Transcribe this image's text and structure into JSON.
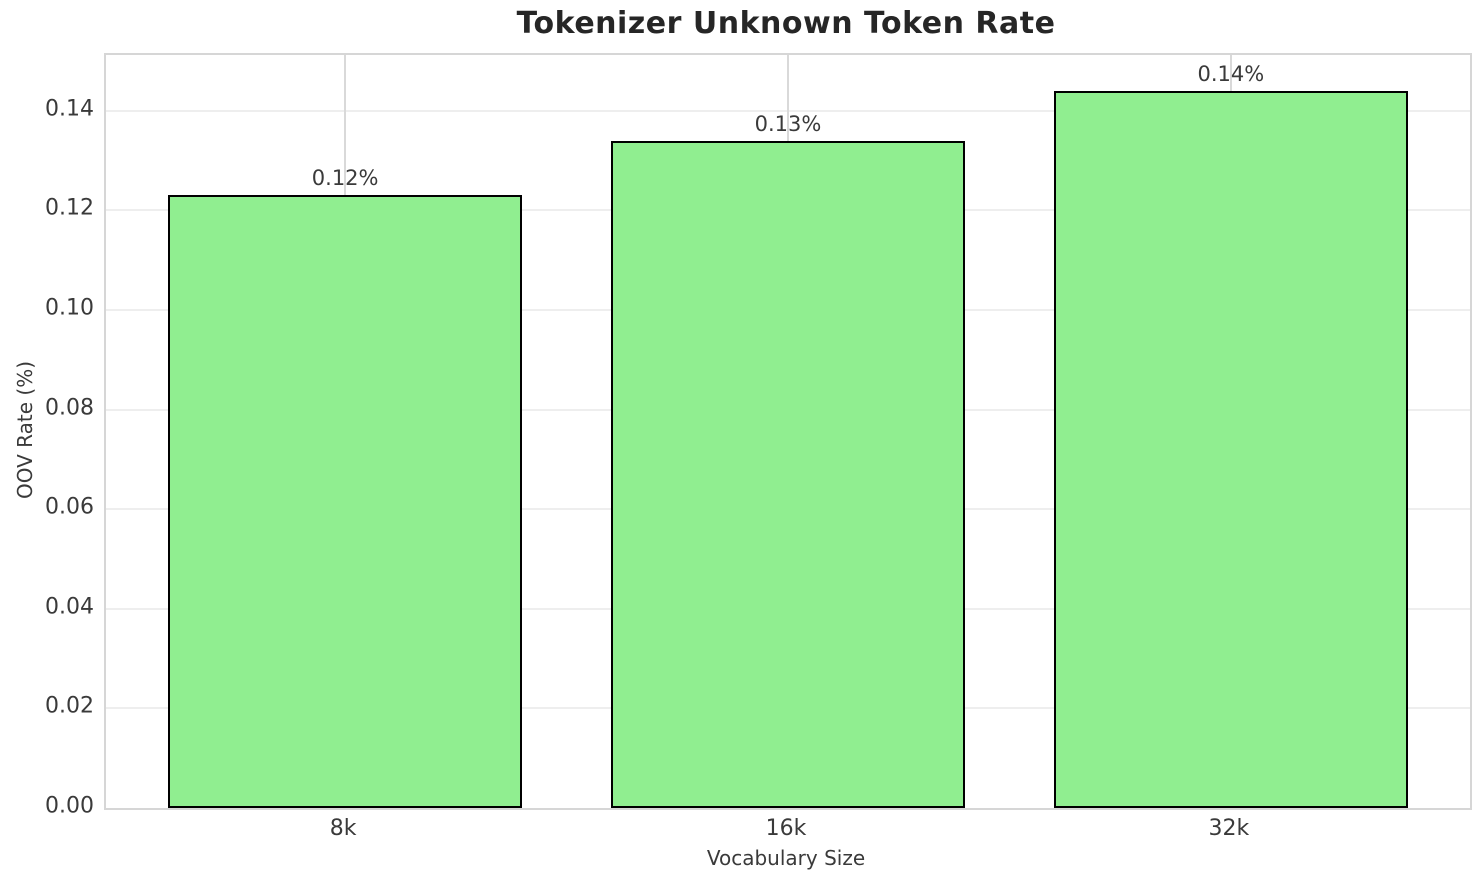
{
  "chart_data": {
    "type": "bar",
    "title": "Tokenizer Unknown Token Rate",
    "xlabel": "Vocabulary Size",
    "ylabel": "OOV Rate (%)",
    "categories": [
      "8k",
      "16k",
      "32k"
    ],
    "values": [
      0.123,
      0.134,
      0.144
    ],
    "bar_labels": [
      "0.12%",
      "0.13%",
      "0.14%"
    ],
    "ytick_values": [
      0.0,
      0.02,
      0.04,
      0.06,
      0.08,
      0.1,
      0.12,
      0.14
    ],
    "ytick_labels": [
      "0.00",
      "0.02",
      "0.04",
      "0.06",
      "0.08",
      "0.10",
      "0.12",
      "0.14"
    ],
    "ylim": [
      0,
      0.1512
    ],
    "xlim": [
      -0.54,
      2.54
    ],
    "bar_width": 0.8,
    "grid": true,
    "legend": null,
    "colors": {
      "bar_fill": "#90EE90",
      "bar_edge": "#000000",
      "grid_horizontal": "#eeeeee",
      "grid_vertical": "#d9d9d9",
      "spine": "#d6d6d6",
      "title_text": "#262626",
      "tick_text": "#3a3a3a"
    }
  }
}
